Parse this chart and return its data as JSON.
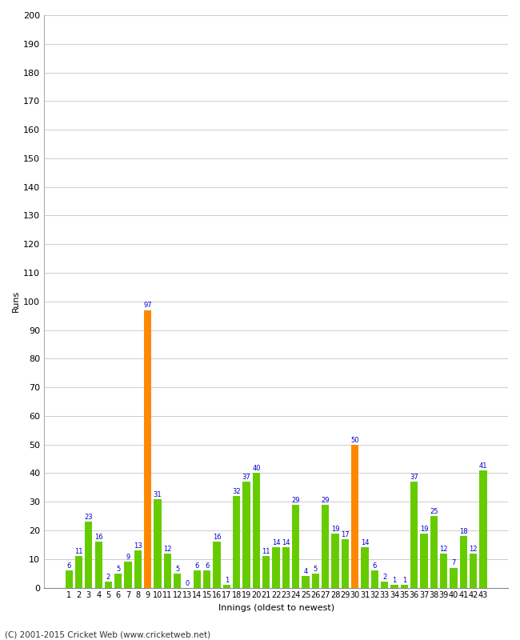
{
  "innings": [
    1,
    2,
    3,
    4,
    5,
    6,
    7,
    8,
    9,
    10,
    11,
    12,
    13,
    14,
    15,
    16,
    17,
    18,
    19,
    20,
    21,
    22,
    23,
    24,
    25,
    26,
    27,
    28,
    29,
    30,
    31,
    32,
    33,
    34,
    35,
    36,
    37,
    38,
    39,
    40,
    41,
    42,
    43
  ],
  "runs": [
    6,
    11,
    23,
    16,
    2,
    5,
    9,
    13,
    97,
    31,
    12,
    5,
    0,
    6,
    6,
    16,
    1,
    32,
    37,
    40,
    11,
    14,
    14,
    29,
    4,
    5,
    29,
    19,
    17,
    50,
    14,
    6,
    2,
    1,
    1,
    37,
    19,
    25,
    12,
    7,
    18,
    12,
    41
  ],
  "highlight_innings": [
    9,
    30
  ],
  "green_color": "#66cc00",
  "orange_color": "#ff8800",
  "ylabel": "Runs",
  "xlabel": "Innings (oldest to newest)",
  "footer": "(C) 2001-2015 Cricket Web (www.cricketweb.net)",
  "ylim": [
    0,
    200
  ],
  "yticks": [
    0,
    10,
    20,
    30,
    40,
    50,
    60,
    70,
    80,
    90,
    100,
    110,
    120,
    130,
    140,
    150,
    160,
    170,
    180,
    190,
    200
  ],
  "label_color": "#0000cc",
  "bg_color": "#ffffff",
  "grid_color": "#cccccc"
}
